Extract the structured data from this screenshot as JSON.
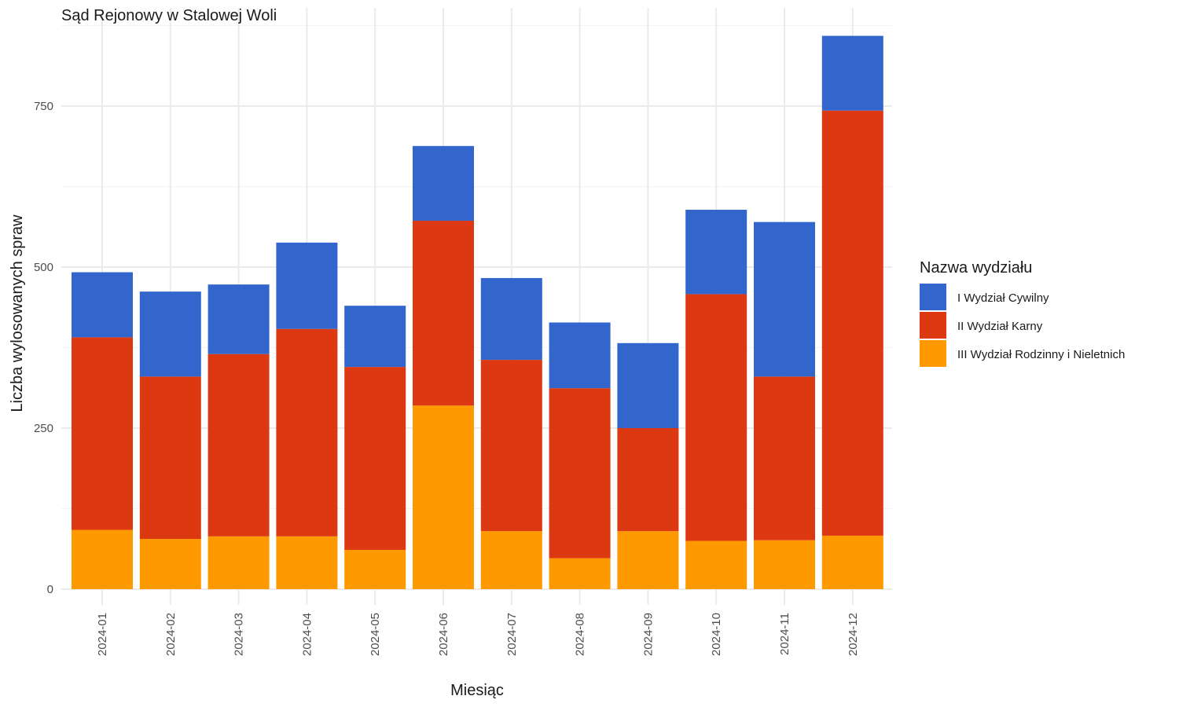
{
  "chart_data": {
    "type": "bar",
    "stacked": true,
    "title": "Sąd Rejonowy w Stalowej Woli",
    "xlabel": "Miesiąc",
    "ylabel": "Liczba wylosowanych spraw",
    "categories": [
      "2024-01",
      "2024-02",
      "2024-03",
      "2024-04",
      "2024-05",
      "2024-06",
      "2024-07",
      "2024-08",
      "2024-09",
      "2024-10",
      "2024-11",
      "2024-12"
    ],
    "yticks": [
      0,
      250,
      500,
      750
    ],
    "ylim": [
      0,
      900
    ],
    "grid": true,
    "legend_position": "right",
    "legend_title": "Nazwa wydziału",
    "series": [
      {
        "name": "III Wydział Rodzinny i Nieletnich",
        "color": "#FF9900",
        "values": [
          92,
          78,
          82,
          82,
          61,
          285,
          90,
          48,
          90,
          75,
          76,
          83
        ]
      },
      {
        "name": "II Wydział Karny",
        "color": "#DC3912",
        "values": [
          299,
          252,
          283,
          322,
          284,
          287,
          266,
          264,
          160,
          383,
          254,
          660
        ]
      },
      {
        "name": "I Wydział Cywilny",
        "color": "#3366CC",
        "values": [
          101,
          132,
          108,
          134,
          95,
          116,
          127,
          102,
          132,
          131,
          240,
          116
        ]
      }
    ],
    "legend_order": [
      "I Wydział Cywilny",
      "II Wydział Karny",
      "III Wydział Rodzinny i Nieletnich"
    ]
  }
}
